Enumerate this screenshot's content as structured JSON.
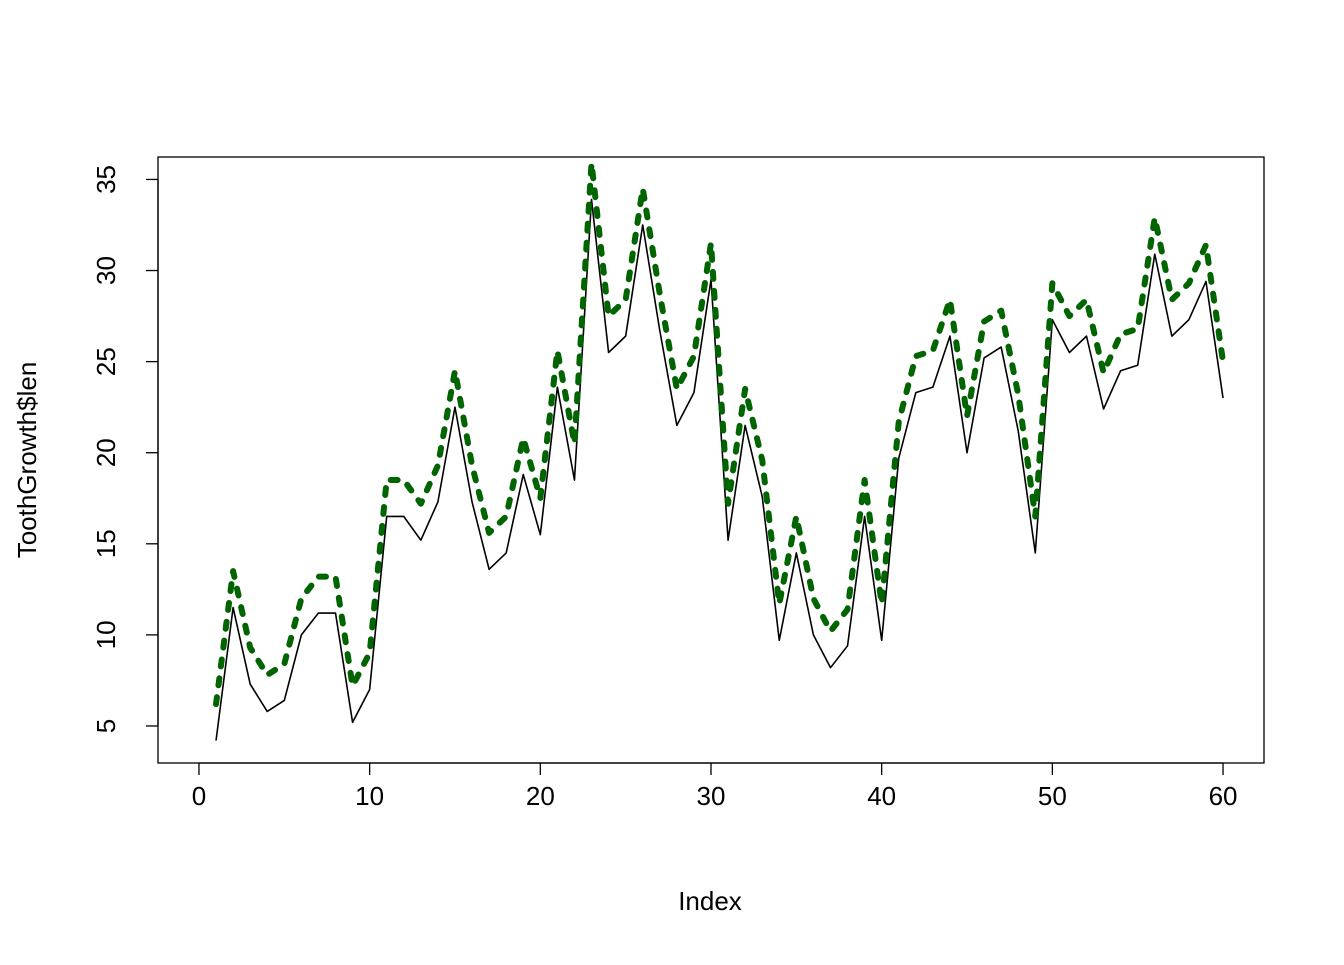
{
  "chart_data": {
    "type": "line",
    "title": "",
    "xlabel": "Index",
    "ylabel": "ToothGrowth$len",
    "xlim": [
      0,
      60
    ],
    "ylim": [
      4.2,
      35
    ],
    "x_ticks": [
      "0",
      "10",
      "20",
      "30",
      "40",
      "50",
      "60"
    ],
    "y_ticks": [
      "5",
      "10",
      "15",
      "20",
      "25",
      "30",
      "35"
    ],
    "grid": false,
    "legend": "none",
    "x": [
      1,
      2,
      3,
      4,
      5,
      6,
      7,
      8,
      9,
      10,
      11,
      12,
      13,
      14,
      15,
      16,
      17,
      18,
      19,
      20,
      21,
      22,
      23,
      24,
      25,
      26,
      27,
      28,
      29,
      30,
      31,
      32,
      33,
      34,
      35,
      36,
      37,
      38,
      39,
      40,
      41,
      42,
      43,
      44,
      45,
      46,
      47,
      48,
      49,
      50,
      51,
      52,
      53,
      54,
      55,
      56,
      57,
      58,
      59,
      60
    ],
    "series": [
      {
        "color": "#000000",
        "line_style": "solid",
        "values": [
          4.2,
          11.5,
          7.3,
          5.8,
          6.4,
          10,
          11.2,
          11.2,
          5.2,
          7,
          16.5,
          16.5,
          15.2,
          17.3,
          22.5,
          17.3,
          13.6,
          14.5,
          18.8,
          15.5,
          23.6,
          18.5,
          33.9,
          25.5,
          26.4,
          32.5,
          26.7,
          21.5,
          23.3,
          29.5,
          15.2,
          21.5,
          17.6,
          9.7,
          14.5,
          10,
          8.2,
          9.4,
          16.5,
          9.7,
          19.7,
          23.3,
          23.6,
          26.4,
          20,
          25.2,
          25.8,
          21.2,
          14.5,
          27.3,
          25.5,
          26.4,
          22.4,
          24.5,
          24.8,
          30.9,
          26.4,
          27.3,
          29.4,
          23
        ]
      },
      {
        "color": "#006400",
        "line_style": "dotted-thick",
        "values": [
          6.2,
          13.5,
          9.3,
          7.8,
          8.4,
          12,
          13.2,
          13.2,
          7.2,
          9,
          18.5,
          18.5,
          17.2,
          19.3,
          24.5,
          19.3,
          15.6,
          16.5,
          20.8,
          17.5,
          25.6,
          20.5,
          35.9,
          27.5,
          28.4,
          34.5,
          28.7,
          23.5,
          25.3,
          31.5,
          17.2,
          23.5,
          19.6,
          11.7,
          16.5,
          12,
          10.2,
          11.4,
          18.5,
          11.7,
          21.7,
          25.3,
          25.6,
          28.4,
          22,
          27.2,
          27.8,
          23.2,
          16.5,
          29.3,
          27.5,
          28.4,
          24.4,
          26.5,
          26.8,
          32.9,
          28.4,
          29.3,
          31.4,
          25
        ]
      }
    ]
  }
}
